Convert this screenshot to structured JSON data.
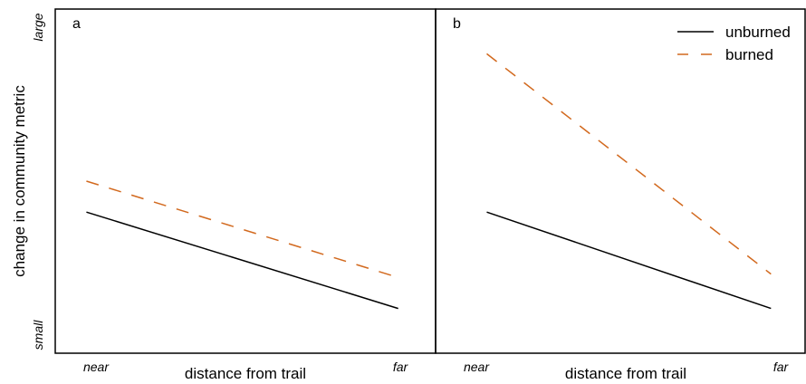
{
  "chart_data": [
    {
      "type": "line",
      "panel_label": "a",
      "xlabel": "distance from trail",
      "ylabel": "change in community metric",
      "x_tick_labels": [
        "near",
        "far"
      ],
      "y_tick_labels": [
        "small",
        "large"
      ],
      "x": [
        0,
        1
      ],
      "xlim": [
        -0.1,
        1.12
      ],
      "ylim": [
        0,
        1
      ],
      "grid": false,
      "series": [
        {
          "name": "unburned",
          "values": [
            0.41,
            0.13
          ],
          "color": "#000000",
          "dash": "solid"
        },
        {
          "name": "burned",
          "values": [
            0.5,
            0.22
          ],
          "color": "#d2691e",
          "dash": "dashed"
        }
      ]
    },
    {
      "type": "line",
      "panel_label": "b",
      "xlabel": "distance from trail",
      "ylabel": "",
      "x_tick_labels": [
        "near",
        "far"
      ],
      "y_tick_labels": [],
      "x": [
        0,
        1
      ],
      "xlim": [
        -0.18,
        1.12
      ],
      "ylim": [
        0,
        1
      ],
      "grid": false,
      "legend": "top-right",
      "series": [
        {
          "name": "unburned",
          "values": [
            0.41,
            0.13
          ],
          "color": "#000000",
          "dash": "solid"
        },
        {
          "name": "burned",
          "values": [
            0.87,
            0.23
          ],
          "color": "#d2691e",
          "dash": "dashed"
        }
      ]
    }
  ]
}
